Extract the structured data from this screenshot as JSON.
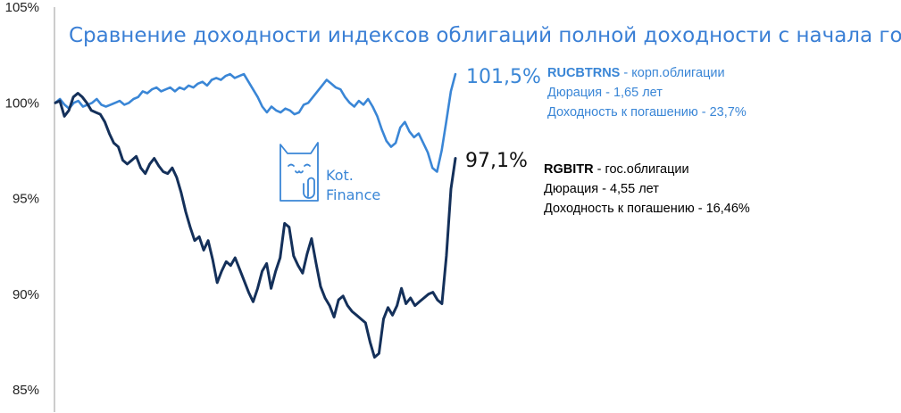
{
  "chart_data": {
    "type": "line",
    "title": "Сравнение доходности индексов облигаций полной доходности с начала года",
    "ylim": [
      85,
      105
    ],
    "y_ticks": [
      "85%",
      "90%",
      "95%",
      "100%",
      "105%"
    ],
    "y_tick_values": [
      85,
      90,
      95,
      100,
      105
    ],
    "grid": false,
    "series": [
      {
        "name": "RUCBTRNS",
        "color": "#3a86d6",
        "end_label": "101,5%",
        "values": [
          100.0,
          100.2,
          99.9,
          99.7,
          100.0,
          100.1,
          99.8,
          99.9,
          100.0,
          100.2,
          99.9,
          99.8,
          99.9,
          100.0,
          100.1,
          99.9,
          100.0,
          100.2,
          100.3,
          100.6,
          100.5,
          100.7,
          100.8,
          100.6,
          100.7,
          100.8,
          100.6,
          100.8,
          100.7,
          100.9,
          100.8,
          101.0,
          101.1,
          100.9,
          101.2,
          101.3,
          101.2,
          101.4,
          101.5,
          101.3,
          101.4,
          101.5,
          101.1,
          100.7,
          100.3,
          99.8,
          99.5,
          99.8,
          99.6,
          99.5,
          99.7,
          99.6,
          99.4,
          99.5,
          99.9,
          100.0,
          100.3,
          100.6,
          100.9,
          101.2,
          101.0,
          100.8,
          100.7,
          100.3,
          100.0,
          99.8,
          100.1,
          99.9,
          100.2,
          99.8,
          99.3,
          98.6,
          98.0,
          97.7,
          97.9,
          98.7,
          99.0,
          98.5,
          98.2,
          98.4,
          97.9,
          97.4,
          96.6,
          96.4,
          97.5,
          99.0,
          100.6,
          101.5
        ]
      },
      {
        "name": "RGBITR",
        "color": "#14305a",
        "end_label": "97,1%",
        "values": [
          100.0,
          100.1,
          99.3,
          99.6,
          100.3,
          100.5,
          100.3,
          100.0,
          99.6,
          99.5,
          99.4,
          99.0,
          98.4,
          97.9,
          97.7,
          97.0,
          96.8,
          97.0,
          97.2,
          96.6,
          96.3,
          96.8,
          97.1,
          96.7,
          96.4,
          96.3,
          96.6,
          96.1,
          95.3,
          94.3,
          93.5,
          92.8,
          93.0,
          92.3,
          92.8,
          91.8,
          90.6,
          91.2,
          91.7,
          91.5,
          91.9,
          91.3,
          90.7,
          90.1,
          89.6,
          90.3,
          91.2,
          91.6,
          90.3,
          91.2,
          91.9,
          93.7,
          93.5,
          92.0,
          91.5,
          91.1,
          92.1,
          92.9,
          91.6,
          90.4,
          89.8,
          89.4,
          88.8,
          89.7,
          89.9,
          89.4,
          89.1,
          88.9,
          88.7,
          88.5,
          87.5,
          86.7,
          86.9,
          88.7,
          89.3,
          88.9,
          89.4,
          90.3,
          89.5,
          89.8,
          89.4,
          89.6,
          89.8,
          90.0,
          90.1,
          89.7,
          89.5,
          92.0,
          95.5,
          97.1
        ]
      }
    ]
  },
  "legend": {
    "rucbtrns": {
      "name": "RUCBTRNS",
      "type_label": " - корп.облигации",
      "duration": "Дюрация - 1,65 лет",
      "yield": "Доходность к погашению  - 23,7%"
    },
    "rgbitr": {
      "name": "RGBITR",
      "type_label": " - гос.облигации",
      "duration": "Дюрация - 4,55 лет",
      "yield": "Доходность к погашению  - 16,46%"
    }
  },
  "logo": {
    "line1": "Kot.",
    "line2": "Finance",
    "color": "#3a86d6"
  }
}
